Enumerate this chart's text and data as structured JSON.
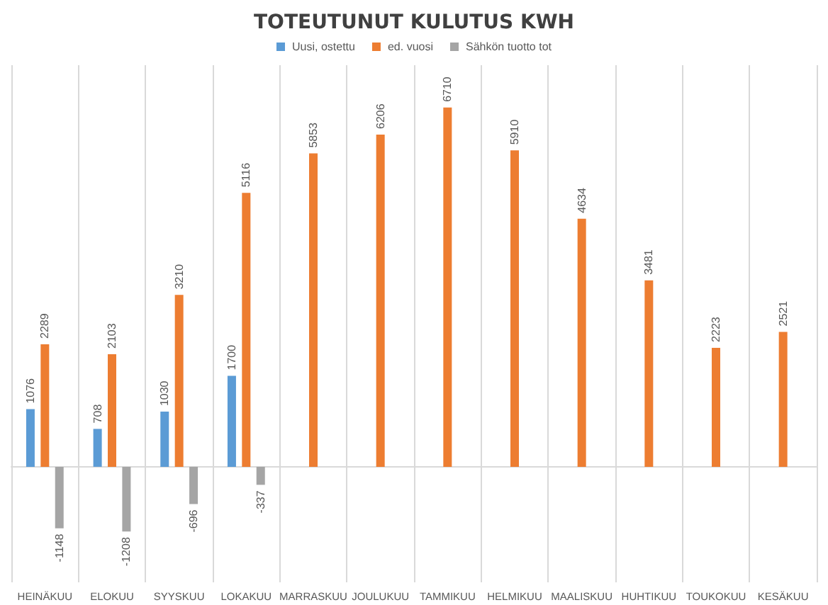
{
  "chart_data": {
    "type": "bar",
    "title": "TOTEUTUNUT KULUTUS KWH",
    "categories": [
      "HEINÄKUU",
      "ELOKUU",
      "SYYSKUU",
      "LOKAKUU",
      "MARRASKUU",
      "JOULUKUU",
      "TAMMIKUU",
      "HELMIKUU",
      "MAALISKUU",
      "HUHTIKUU",
      "TOUKOKUU",
      "KESÄKUU"
    ],
    "series": [
      {
        "name": "Uusi, ostettu",
        "color": "#5b9bd5",
        "values": [
          1076,
          708,
          1030,
          1700,
          null,
          null,
          null,
          null,
          null,
          null,
          null,
          null
        ]
      },
      {
        "name": "ed. vuosi",
        "color": "#ed7d31",
        "values": [
          2289,
          2103,
          3210,
          5116,
          5853,
          6206,
          6710,
          5910,
          4634,
          3481,
          2223,
          2521
        ]
      },
      {
        "name": "Sähkön tuotto tot",
        "color": "#a5a5a5",
        "values": [
          -1148,
          -1208,
          -696,
          -337,
          null,
          null,
          null,
          null,
          null,
          null,
          null,
          null
        ]
      }
    ],
    "data_labels": true,
    "grid": "x",
    "legend": "top"
  }
}
